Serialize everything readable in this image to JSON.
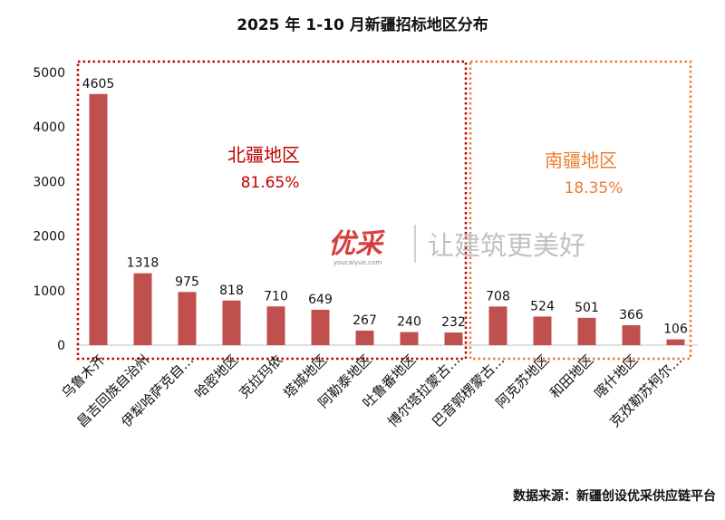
{
  "chart_data": {
    "type": "bar",
    "title": "2025 年 1-10 月新疆招标地区分布",
    "source": "数据来源：新疆创设优采供应链平台",
    "categories": [
      "乌鲁木齐",
      "昌吉回族自治州",
      "伊犁哈萨克自…",
      "哈密地区",
      "克拉玛依",
      "塔城地区",
      "阿勒泰地区",
      "吐鲁番地区",
      "博尔塔拉蒙古…",
      "巴音郭楞蒙古…",
      "阿克苏地区",
      "和田地区",
      "喀什地区",
      "克孜勒苏柯尔…"
    ],
    "values": [
      4605,
      1318,
      975,
      818,
      710,
      649,
      267,
      240,
      232,
      708,
      524,
      501,
      366,
      106
    ],
    "value_labels": [
      "4605",
      "1318",
      "975",
      "818",
      "710",
      "649",
      "267",
      "240",
      "232",
      "708",
      "524",
      "501",
      "366",
      "106"
    ],
    "ylim": [
      0,
      5000
    ],
    "yticks": [
      "0",
      "1000",
      "2000",
      "3000",
      "4000",
      "5000"
    ],
    "bar_color": "#c0504d",
    "grid": false,
    "annotations": {
      "north": {
        "label": "北疆地区",
        "percent": "81.65%",
        "color": "#c00000",
        "categories": 9
      },
      "south": {
        "label": "南疆地区",
        "percent": "18.35%",
        "color": "#ed7d31",
        "categories": 5
      }
    },
    "watermark": {
      "logo_text": "优采",
      "logo_sub": "youcaiyun.com",
      "slogan": "让建筑更美好"
    }
  }
}
